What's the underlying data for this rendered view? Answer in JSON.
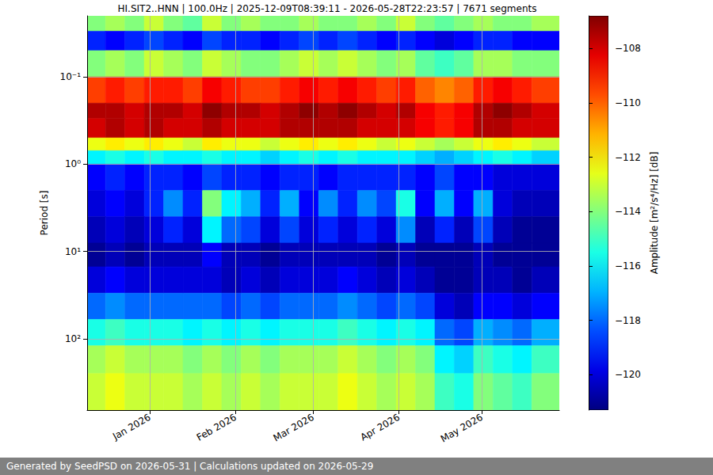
{
  "chart_data": {
    "type": "heatmap",
    "title": "HI.SIT2..HNN | 100.0Hz | 2025-12-09T08:39:11 - 2026-05-28T22:23:57 | 7671 segments",
    "ylabel": "Period [s]",
    "caption": "Generated by SeedPSD on 2026-05-31 | Calculations updated on 2026-05-29",
    "log": "y",
    "grid": true,
    "xlim": [
      "2025-12-09T08:39:11",
      "2026-05-28T22:23:57"
    ],
    "xticks": [
      {
        "value": "2026-01-01T00:00:00",
        "label": "Jan 2026"
      },
      {
        "value": "2026-02-01T00:00:00",
        "label": "Feb 2026"
      },
      {
        "value": "2026-03-01T00:00:00",
        "label": "Mar 2026"
      },
      {
        "value": "2026-04-01T00:00:00",
        "label": "Apr 2026"
      },
      {
        "value": "2026-05-01T00:00:00",
        "label": "May 2026"
      }
    ],
    "ylim": [
      0.02,
      655
    ],
    "yticks": [
      {
        "value": 0.1,
        "label": "10⁻¹"
      },
      {
        "value": 1,
        "label": "10⁰"
      },
      {
        "value": 10,
        "label": "10¹"
      },
      {
        "value": 100,
        "label": "10²"
      }
    ],
    "x_edges": [
      "2025-12-09T08:39:11",
      "2025-12-16T00:00:00",
      "2025-12-23T00:00:00",
      "2025-12-30T00:00:00",
      "2026-01-06T00:00:00",
      "2026-01-13T00:00:00",
      "2026-01-20T00:00:00",
      "2026-01-27T00:00:00",
      "2026-02-03T00:00:00",
      "2026-02-10T00:00:00",
      "2026-02-17T00:00:00",
      "2026-02-24T00:00:00",
      "2026-03-03T00:00:00",
      "2026-03-10T00:00:00",
      "2026-03-17T00:00:00",
      "2026-03-24T00:00:00",
      "2026-03-31T00:00:00",
      "2026-04-07T00:00:00",
      "2026-04-14T00:00:00",
      "2026-04-21T00:00:00",
      "2026-04-28T00:00:00",
      "2026-05-05T00:00:00",
      "2026-05-12T00:00:00",
      "2026-05-19T00:00:00",
      "2026-05-28T22:23:57"
    ],
    "y_edges": [
      0.02,
      0.03,
      0.05,
      0.1,
      0.2,
      0.3,
      0.5,
      0.7,
      1,
      2,
      4,
      8,
      15,
      30,
      60,
      120,
      250,
      655
    ],
    "values": [
      [
        -114,
        -113.5,
        -114,
        -113,
        -114,
        -114.5,
        -113,
        -114,
        -113.5,
        -114,
        -114,
        -113.5,
        -114,
        -114,
        -113.5,
        -114,
        -113,
        -114,
        -114.5,
        -114,
        -113.5,
        -114,
        -114,
        -113.5
      ],
      [
        -119,
        -119.5,
        -119,
        -118.5,
        -119,
        -119.5,
        -118.5,
        -119,
        -119,
        -119.5,
        -119,
        -118.5,
        -119,
        -118.5,
        -119,
        -119.5,
        -119,
        -119.5,
        -120,
        -119.5,
        -119,
        -119,
        -119.5,
        -119.5
      ],
      [
        -114,
        -113.5,
        -114,
        -113,
        -113.5,
        -114,
        -113,
        -113.5,
        -114,
        -114,
        -113.5,
        -113,
        -113.5,
        -113,
        -113.5,
        -114,
        -113.5,
        -114.5,
        -115,
        -114.5,
        -113.5,
        -113.5,
        -114,
        -114
      ],
      [
        -109.5,
        -109,
        -109.5,
        -109,
        -109,
        -109.5,
        -108.5,
        -109,
        -109.5,
        -109.5,
        -109,
        -108.5,
        -109,
        -108.5,
        -109,
        -109.5,
        -109,
        -110,
        -110.5,
        -110,
        -109,
        -108.5,
        -109,
        -109.5
      ],
      [
        -107.5,
        -107.5,
        -108,
        -107.5,
        -107.5,
        -108,
        -107,
        -107.5,
        -107.5,
        -108,
        -107.5,
        -107,
        -107.5,
        -107,
        -107.5,
        -108,
        -107.5,
        -108.5,
        -109,
        -108.5,
        -107.5,
        -107,
        -107.5,
        -108
      ],
      [
        -108,
        -107.5,
        -108,
        -107.5,
        -108,
        -108,
        -107.5,
        -108,
        -108,
        -108,
        -107.5,
        -107.5,
        -107.5,
        -107.5,
        -108,
        -108,
        -108,
        -108.5,
        -109,
        -108.5,
        -107.5,
        -107.5,
        -108,
        -108
      ],
      [
        -112.5,
        -112,
        -112.5,
        -112,
        -112.5,
        -113,
        -112,
        -112.5,
        -112.5,
        -113,
        -112.5,
        -112,
        -112.5,
        -112,
        -112.5,
        -113,
        -112.5,
        -113,
        -113.5,
        -113,
        -112.5,
        -112,
        -112.5,
        -113
      ],
      [
        -116,
        -115.5,
        -116,
        -115.5,
        -116,
        -116,
        -115.5,
        -116,
        -116,
        -116.5,
        -116,
        -115.5,
        -116,
        -115.5,
        -116,
        -116,
        -116,
        -116.5,
        -117,
        -116.5,
        -116,
        -115.5,
        -116,
        -116.5
      ],
      [
        -119.5,
        -119,
        -119.5,
        -119,
        -119,
        -119.5,
        -118.5,
        -119,
        -119,
        -119.5,
        -119,
        -119,
        -119.5,
        -119,
        -119,
        -119,
        -119,
        -119.5,
        -118.5,
        -119.5,
        -119.5,
        -120,
        -120,
        -120
      ],
      [
        -120,
        -119.5,
        -120,
        -119,
        -117.5,
        -119,
        -114,
        -116,
        -117,
        -119,
        -117,
        -119.5,
        -117.5,
        -119,
        -117.5,
        -118.5,
        -115.5,
        -119.5,
        -117,
        -119.5,
        -117,
        -120,
        -120.5,
        -120.5
      ],
      [
        -120.5,
        -120,
        -120.5,
        -120,
        -119,
        -120,
        -116,
        -118,
        -118.5,
        -120,
        -118.5,
        -120,
        -119,
        -120,
        -119,
        -120,
        -117.5,
        -120.5,
        -119,
        -120.5,
        -118.5,
        -120.5,
        -121,
        -121
      ],
      [
        -121,
        -120.5,
        -121,
        -120.5,
        -120.5,
        -120.5,
        -119.5,
        -120.5,
        -120.5,
        -121,
        -120.5,
        -120.5,
        -120.5,
        -120.5,
        -120.5,
        -121,
        -120.5,
        -121,
        -121,
        -121,
        -120.5,
        -121,
        -121,
        -121
      ],
      [
        -120,
        -119.5,
        -120,
        -120,
        -120,
        -120,
        -120,
        -120.5,
        -120,
        -120.5,
        -120,
        -120,
        -120,
        -119.5,
        -120,
        -120.5,
        -120,
        -120.5,
        -121,
        -121,
        -120.5,
        -120.5,
        -121,
        -120.5
      ],
      [
        -118,
        -117.5,
        -118,
        -118,
        -118,
        -118,
        -118,
        -118.5,
        -118,
        -118.5,
        -118,
        -118,
        -118,
        -117.5,
        -118,
        -118.5,
        -118,
        -118.5,
        -120,
        -120.5,
        -119.5,
        -119.5,
        -120,
        -119.5
      ],
      [
        -115.5,
        -115,
        -115.5,
        -115.5,
        -115.5,
        -116,
        -115.5,
        -116,
        -115.5,
        -116,
        -115.5,
        -115.5,
        -115.5,
        -115,
        -115.5,
        -116,
        -115.5,
        -116,
        -118,
        -118.5,
        -117,
        -117.5,
        -118,
        -117
      ],
      [
        -113.5,
        -113,
        -113.5,
        -113.5,
        -113.5,
        -114,
        -113.5,
        -114,
        -113.5,
        -114,
        -113.5,
        -113.5,
        -113.5,
        -113,
        -113.5,
        -114,
        -113.5,
        -114,
        -116,
        -116.5,
        -115,
        -115.5,
        -116,
        -115
      ],
      [
        -113,
        -112.5,
        -113,
        -113,
        -113,
        -113.5,
        -113,
        -113.5,
        -113,
        -113.5,
        -113,
        -113,
        -113,
        -112.5,
        -113,
        -113.5,
        -113,
        -113.5,
        -115,
        -115.5,
        -114,
        -114.5,
        -115,
        -114
      ]
    ],
    "colorbar": {
      "label": "Amplitude [m²/s⁴/Hz] [dB]",
      "range": [
        -121.3,
        -106.8
      ],
      "ticks": [
        {
          "value": -120,
          "label": "−120"
        },
        {
          "value": -118,
          "label": "−118"
        },
        {
          "value": -116,
          "label": "−116"
        },
        {
          "value": -114,
          "label": "−114"
        },
        {
          "value": -112,
          "label": "−112"
        },
        {
          "value": -110,
          "label": "−110"
        },
        {
          "value": -108,
          "label": "−108"
        }
      ]
    }
  }
}
